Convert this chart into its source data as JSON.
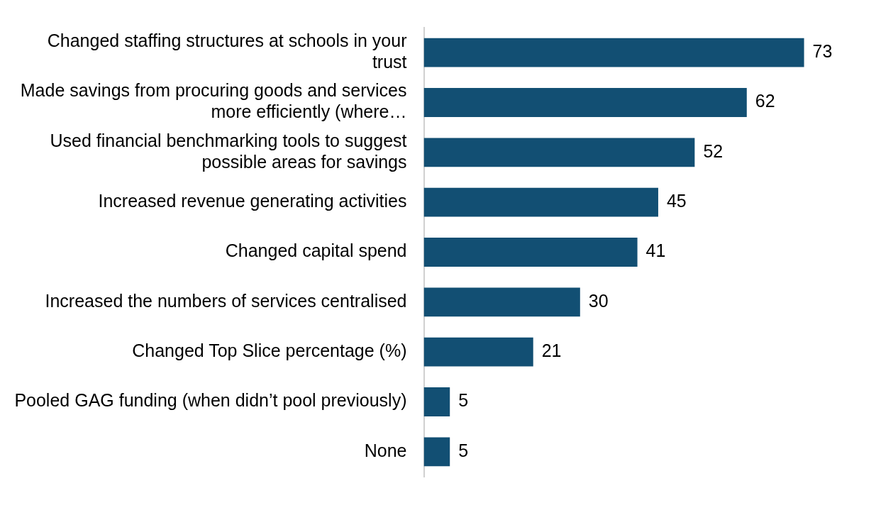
{
  "chart_data": {
    "type": "bar",
    "orientation": "horizontal",
    "data_labels": true,
    "categories": [
      "Changed staffing structures at schools in your trust",
      "Made savings from procuring goods and services more efficiently (where…",
      "Used financial benchmarking tools to suggest possible areas for savings",
      "Increased revenue generating activities",
      "Changed capital spend",
      "Increased the numbers of services centralised",
      "Changed Top Slice percentage (%)",
      "Pooled GAG funding (when didn’t pool previously)",
      "None"
    ],
    "values": [
      73,
      62,
      52,
      45,
      41,
      30,
      21,
      5,
      5
    ],
    "color": "#124f73"
  }
}
